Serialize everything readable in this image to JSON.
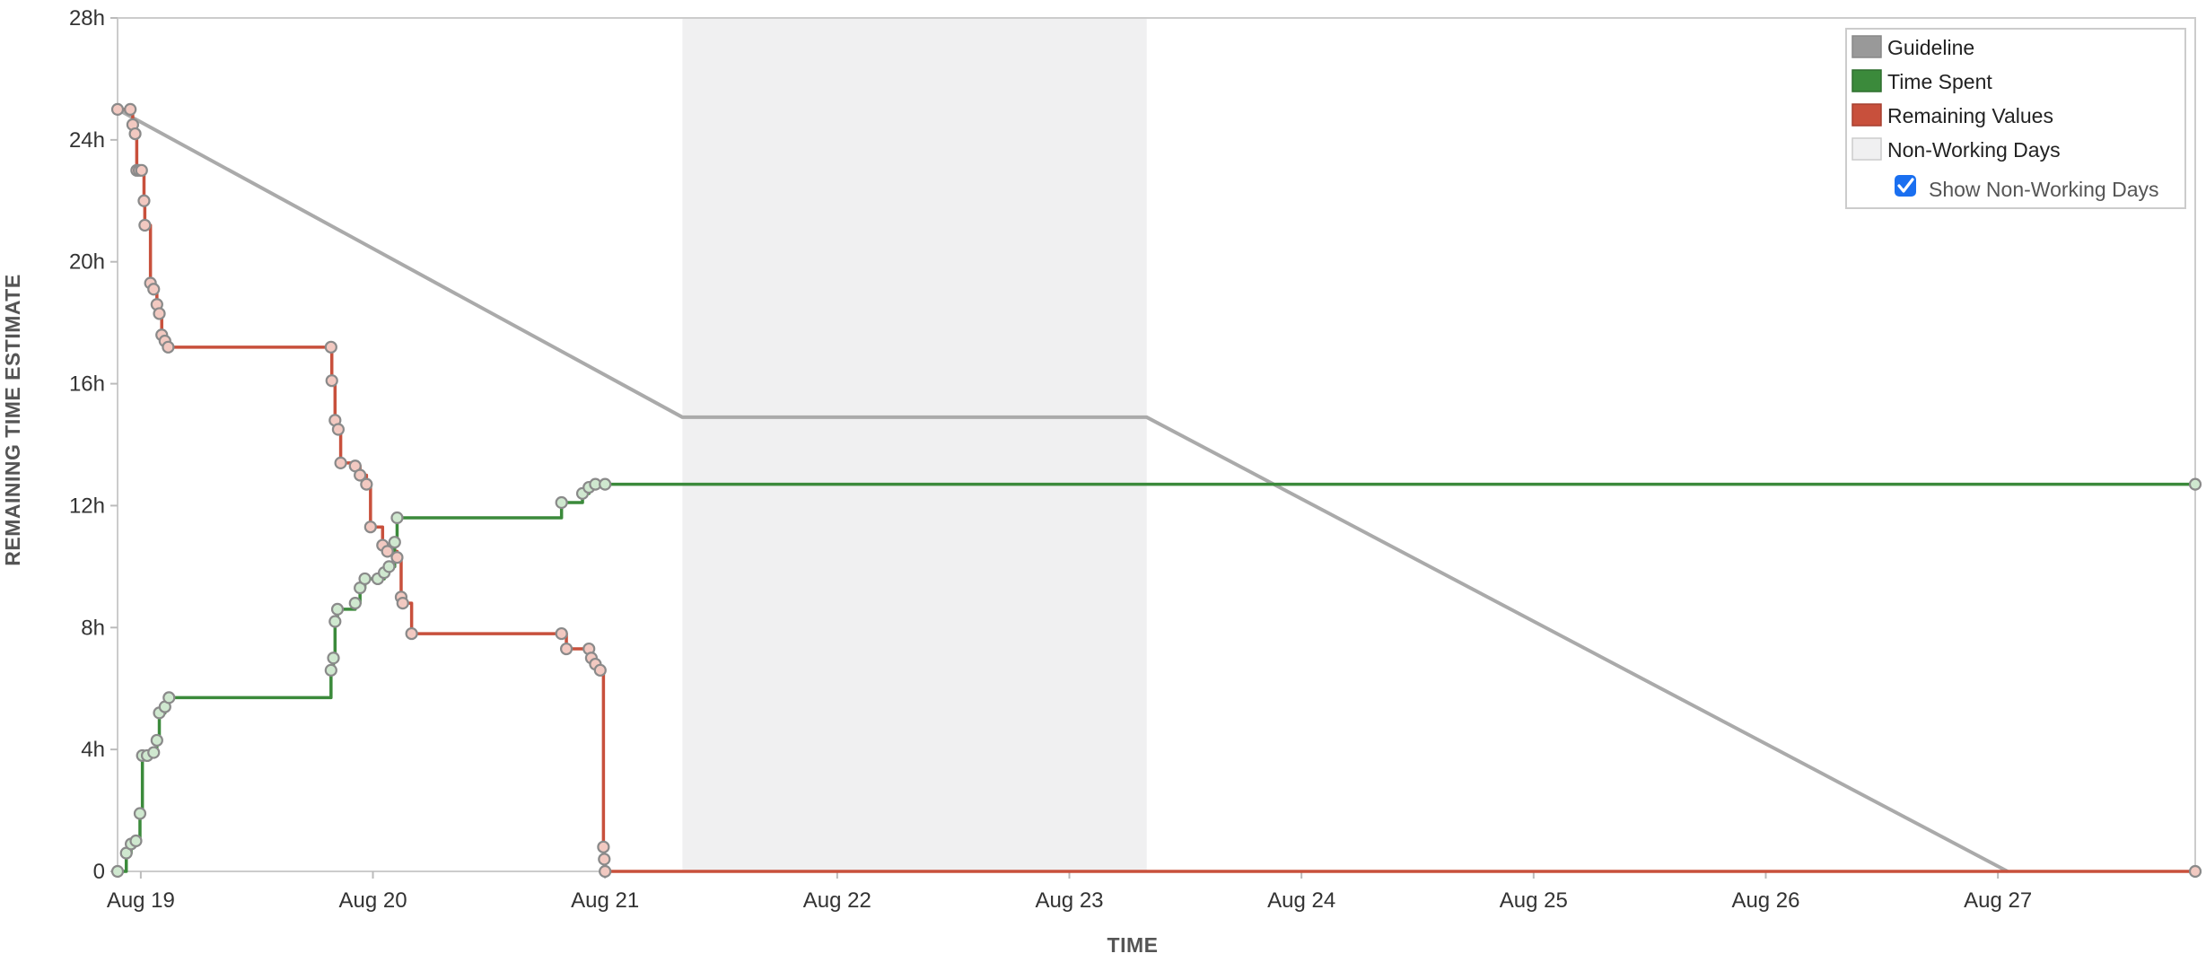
{
  "chart_data": {
    "type": "line",
    "xlabel": "TIME",
    "ylabel": "REMAINING TIME ESTIMATE",
    "x_domain": [
      "Aug 18 21:36",
      "Aug 27 20:24"
    ],
    "ylim": [
      0,
      28
    ],
    "y_ticks": [
      0,
      4,
      8,
      12,
      16,
      20,
      24,
      28
    ],
    "y_tick_labels": [
      "0",
      "4h",
      "8h",
      "12h",
      "16h",
      "20h",
      "24h",
      "28h"
    ],
    "x_ticks": [
      "Aug 19",
      "Aug 20",
      "Aug 21",
      "Aug 22",
      "Aug 23",
      "Aug 24",
      "Aug 25",
      "Aug 26",
      "Aug 27"
    ],
    "non_working_days": [
      [
        "Aug 21 08:00",
        "Aug 23 08:00"
      ]
    ],
    "legend": {
      "placement": "top-right",
      "items": [
        {
          "label": "Guideline",
          "color": "#999999"
        },
        {
          "label": "Time Spent",
          "color": "#3b8a3b"
        },
        {
          "label": "Remaining Values",
          "color": "#c8503c"
        },
        {
          "label": "Non-Working Days",
          "color": "#f0f0f1"
        }
      ],
      "toggle": {
        "label": "Show Non-Working Days",
        "checked": true
      }
    },
    "series": [
      {
        "name": "Guideline",
        "color": "#aaaaaa",
        "step": false,
        "points": [
          [
            "Aug 18 21:36",
            25.0
          ],
          [
            "Aug 21 08:00",
            14.9
          ],
          [
            "Aug 23 08:00",
            14.9
          ],
          [
            "Aug 27 01:00",
            0
          ]
        ]
      },
      {
        "name": "Remaining Values",
        "color": "#c8503c",
        "step": true,
        "points": [
          [
            "Aug 18 21:36",
            25.0
          ],
          [
            "Aug 18 22:55",
            25.0
          ],
          [
            "Aug 18 23:10",
            24.5
          ],
          [
            "Aug 18 23:25",
            24.2
          ],
          [
            "Aug 18 23:35",
            23.0
          ],
          [
            "Aug 18 23:50",
            23.0
          ],
          [
            "Aug 19 00:05",
            23.0
          ],
          [
            "Aug 19 00:20",
            22.0
          ],
          [
            "Aug 19 00:25",
            21.2
          ],
          [
            "Aug 19 01:00",
            19.3
          ],
          [
            "Aug 19 01:20",
            19.1
          ],
          [
            "Aug 19 01:40",
            18.6
          ],
          [
            "Aug 19 01:55",
            18.3
          ],
          [
            "Aug 19 02:10",
            17.6
          ],
          [
            "Aug 19 02:30",
            17.4
          ],
          [
            "Aug 19 02:50",
            17.2
          ],
          [
            "Aug 19 19:40",
            17.2
          ],
          [
            "Aug 19 19:45",
            16.1
          ],
          [
            "Aug 19 20:05",
            14.8
          ],
          [
            "Aug 19 20:25",
            14.5
          ],
          [
            "Aug 19 20:40",
            13.4
          ],
          [
            "Aug 19 22:10",
            13.3
          ],
          [
            "Aug 19 22:40",
            13.0
          ],
          [
            "Aug 19 23:20",
            12.7
          ],
          [
            "Aug 19 23:45",
            11.3
          ],
          [
            "Aug 20 01:00",
            10.7
          ],
          [
            "Aug 20 01:30",
            10.5
          ],
          [
            "Aug 20 02:30",
            10.3
          ],
          [
            "Aug 20 02:55",
            9.0
          ],
          [
            "Aug 20 03:05",
            8.8
          ],
          [
            "Aug 20 04:00",
            7.8
          ],
          [
            "Aug 20 19:30",
            7.8
          ],
          [
            "Aug 20 20:00",
            7.3
          ],
          [
            "Aug 20 22:20",
            7.3
          ],
          [
            "Aug 20 22:35",
            7.0
          ],
          [
            "Aug 20 23:00",
            6.8
          ],
          [
            "Aug 20 23:30",
            6.6
          ],
          [
            "Aug 20 23:50",
            0.8
          ],
          [
            "Aug 20 23:55",
            0.4
          ],
          [
            "Aug 21 00:00",
            0.0
          ],
          [
            "Aug 27 20:24",
            0.0
          ]
        ]
      },
      {
        "name": "Time Spent",
        "color": "#3b8a3b",
        "step": true,
        "points": [
          [
            "Aug 18 21:36",
            0.0
          ],
          [
            "Aug 18 22:30",
            0.6
          ],
          [
            "Aug 18 23:00",
            0.9
          ],
          [
            "Aug 18 23:30",
            1.0
          ],
          [
            "Aug 18 23:55",
            1.9
          ],
          [
            "Aug 19 00:10",
            3.8
          ],
          [
            "Aug 19 00:40",
            3.8
          ],
          [
            "Aug 19 01:20",
            3.9
          ],
          [
            "Aug 19 01:40",
            4.3
          ],
          [
            "Aug 19 01:55",
            5.2
          ],
          [
            "Aug 19 02:30",
            5.4
          ],
          [
            "Aug 19 02:55",
            5.7
          ],
          [
            "Aug 19 19:40",
            6.6
          ],
          [
            "Aug 19 19:55",
            7.0
          ],
          [
            "Aug 19 20:05",
            8.2
          ],
          [
            "Aug 19 20:20",
            8.6
          ],
          [
            "Aug 19 22:10",
            8.8
          ],
          [
            "Aug 19 22:40",
            9.3
          ],
          [
            "Aug 19 23:10",
            9.6
          ],
          [
            "Aug 20 00:30",
            9.6
          ],
          [
            "Aug 20 01:10",
            9.8
          ],
          [
            "Aug 20 01:40",
            10.0
          ],
          [
            "Aug 20 02:15",
            10.8
          ],
          [
            "Aug 20 02:30",
            11.6
          ],
          [
            "Aug 20 19:30",
            12.1
          ],
          [
            "Aug 20 21:40",
            12.4
          ],
          [
            "Aug 20 22:20",
            12.6
          ],
          [
            "Aug 20 23:00",
            12.7
          ],
          [
            "Aug 21 00:00",
            12.7
          ],
          [
            "Aug 27 20:24",
            12.7
          ]
        ]
      }
    ]
  }
}
